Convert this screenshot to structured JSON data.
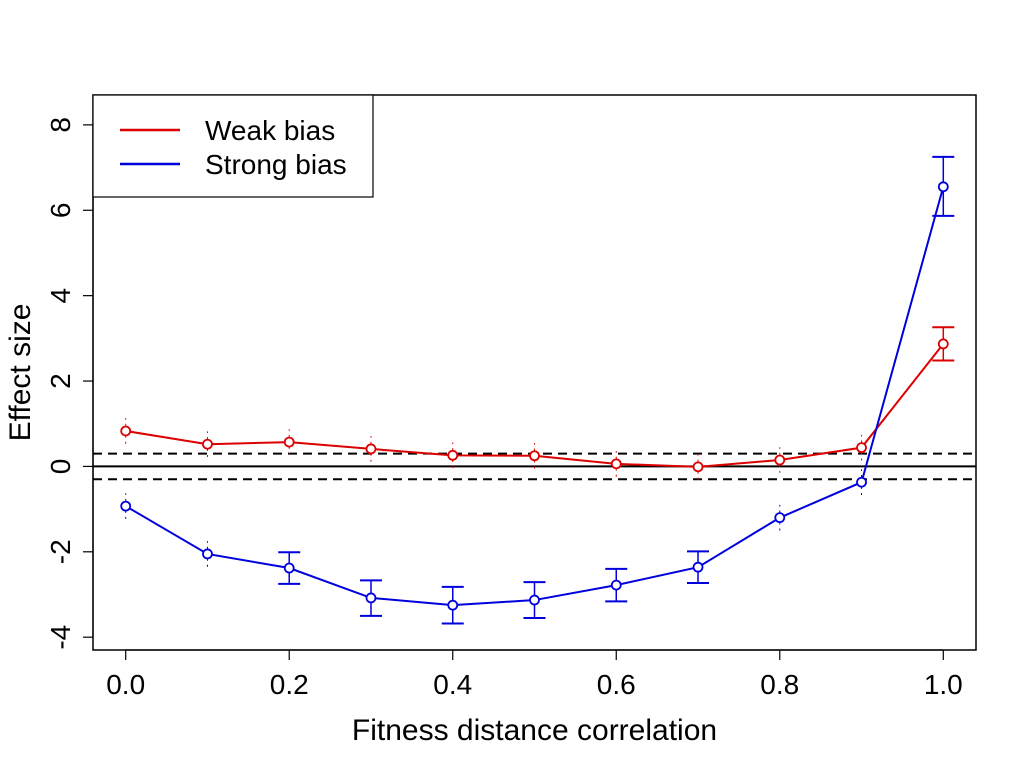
{
  "chart_data": {
    "type": "line",
    "title": "",
    "xlabel": "Fitness distance correlation",
    "ylabel": "Effect size",
    "xlim": [
      -0.04,
      1.04
    ],
    "ylim": [
      -4.3,
      8.7
    ],
    "x": [
      0.0,
      0.1,
      0.2,
      0.3,
      0.4,
      0.5,
      0.6,
      0.7,
      0.8,
      0.9,
      1.0
    ],
    "x_ticks": [
      "0.0",
      "0.2",
      "0.4",
      "0.6",
      "0.8",
      "1.0"
    ],
    "x_tick_values": [
      0.0,
      0.2,
      0.4,
      0.6,
      0.8,
      1.0
    ],
    "y_ticks": [
      "-4",
      "-2",
      "0",
      "2",
      "4",
      "6",
      "8"
    ],
    "y_tick_values": [
      -4,
      -2,
      0,
      2,
      4,
      6,
      8
    ],
    "grid": false,
    "legend_position": "top-left",
    "reference_lines": [
      {
        "y": 0,
        "style": "solid"
      },
      {
        "y": 0.3,
        "style": "dashed"
      },
      {
        "y": -0.3,
        "style": "dashed"
      }
    ],
    "series": [
      {
        "name": "Weak bias",
        "color": "#dd0000",
        "values": [
          0.83,
          0.52,
          0.57,
          0.41,
          0.26,
          0.25,
          0.06,
          -0.01,
          0.15,
          0.44,
          2.87
        ],
        "lower": [
          0.53,
          0.22,
          0.27,
          0.11,
          -0.04,
          -0.05,
          -0.24,
          -0.31,
          -0.15,
          0.14,
          2.48
        ],
        "upper": [
          1.13,
          0.82,
          0.87,
          0.71,
          0.56,
          0.55,
          0.36,
          0.29,
          0.45,
          0.74,
          3.26
        ]
      },
      {
        "name": "Strong bias",
        "color": "#0000dd",
        "values": [
          -0.93,
          -2.05,
          -2.38,
          -3.08,
          -3.25,
          -3.13,
          -2.78,
          -2.36,
          -1.2,
          -0.37,
          6.55
        ],
        "lower": [
          -1.23,
          -2.35,
          -2.75,
          -3.5,
          -3.68,
          -3.55,
          -3.16,
          -2.73,
          -1.5,
          -0.67,
          5.87
        ],
        "upper": [
          -0.63,
          -1.75,
          -2.01,
          -2.67,
          -2.82,
          -2.71,
          -2.4,
          -1.99,
          -0.9,
          -0.07,
          7.25
        ]
      }
    ]
  }
}
